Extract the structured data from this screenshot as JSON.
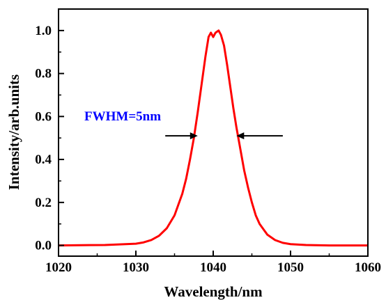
{
  "chart_data": {
    "type": "line",
    "title": "",
    "xlabel": "Wavelength/nm",
    "ylabel": "Intensity/arb.units",
    "xlim": [
      1020,
      1060
    ],
    "ylim": [
      -0.05,
      1.1
    ],
    "x_ticks": [
      "1020",
      "1030",
      "1040",
      "1050",
      "1060"
    ],
    "y_ticks": [
      "0.0",
      "0.2",
      "0.4",
      "0.6",
      "0.8",
      "1.0"
    ],
    "grid": false,
    "series": [
      {
        "color": "#ff0000",
        "x": [
          1020,
          1026,
          1030,
          1031,
          1032,
          1033,
          1034,
          1035,
          1036,
          1036.5,
          1037,
          1037.5,
          1038,
          1038.5,
          1039,
          1039.4,
          1039.7,
          1040,
          1040.3,
          1040.7,
          1041,
          1041.4,
          1041.8,
          1042.2,
          1042.6,
          1043,
          1043.5,
          1044,
          1044.5,
          1045,
          1045.5,
          1046,
          1047,
          1048,
          1049,
          1050,
          1052,
          1055,
          1060
        ],
        "y": [
          0.0,
          0.002,
          0.008,
          0.014,
          0.025,
          0.045,
          0.08,
          0.14,
          0.24,
          0.31,
          0.4,
          0.5,
          0.62,
          0.75,
          0.88,
          0.97,
          0.99,
          0.97,
          0.99,
          1.0,
          0.98,
          0.93,
          0.84,
          0.74,
          0.64,
          0.55,
          0.45,
          0.35,
          0.27,
          0.2,
          0.14,
          0.1,
          0.05,
          0.025,
          0.012,
          0.006,
          0.002,
          0.0,
          0.0
        ]
      }
    ],
    "annotations": [
      {
        "text": "FWHM=5nm",
        "color": "#0000ff"
      }
    ],
    "fwhm_arrows": {
      "left": {
        "tail_x": 1033.8,
        "head_x": 1038.0,
        "y": 0.51
      },
      "right": {
        "tail_x": 1049.0,
        "head_x": 1043.0,
        "y": 0.51
      }
    }
  }
}
